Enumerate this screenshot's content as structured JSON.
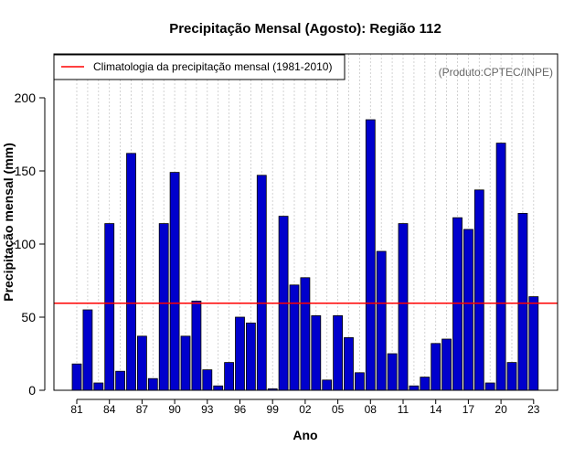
{
  "chart_data": {
    "type": "bar",
    "title": "Precipitação Mensal (Agosto): Região 112",
    "xlabel": "Ano",
    "ylabel": "Precipitação mensal (mm)",
    "ylim": [
      0,
      230
    ],
    "yticks": [
      0,
      50,
      100,
      150,
      200
    ],
    "categories": [
      "1981",
      "1982",
      "1983",
      "1984",
      "1985",
      "1986",
      "1987",
      "1988",
      "1989",
      "1990",
      "1991",
      "1992",
      "1993",
      "1994",
      "1995",
      "1996",
      "1997",
      "1998",
      "1999",
      "2000",
      "2001",
      "2002",
      "2003",
      "2004",
      "2005",
      "2006",
      "2007",
      "2008",
      "2009",
      "2010",
      "2011",
      "2012",
      "2013",
      "2014",
      "2015",
      "2016",
      "2017",
      "2018",
      "2019",
      "2020",
      "2021",
      "2022",
      "2023"
    ],
    "values": [
      18,
      55,
      5,
      114,
      13,
      162,
      37,
      8,
      114,
      149,
      37,
      61,
      14,
      3,
      19,
      50,
      46,
      147,
      1,
      119,
      72,
      77,
      51,
      7,
      51,
      36,
      12,
      185,
      95,
      25,
      114,
      3,
      9,
      32,
      35,
      118,
      110,
      137,
      5,
      169,
      19,
      121,
      64
    ],
    "xtick_labels": [
      "81",
      "84",
      "87",
      "90",
      "93",
      "96",
      "99",
      "02",
      "05",
      "08",
      "11",
      "14",
      "17",
      "20",
      "23"
    ],
    "bar_color": "#0000cc",
    "bar_edge_color": "#000000",
    "climatology": {
      "label": "Climatologia da precipitação mensal (1981-2010)",
      "value": 59.5,
      "color": "#ff0000"
    },
    "source_note": "(Produto:CPTEC/INPE)",
    "grid": "vertical dotted",
    "legend_position": "top-left"
  }
}
